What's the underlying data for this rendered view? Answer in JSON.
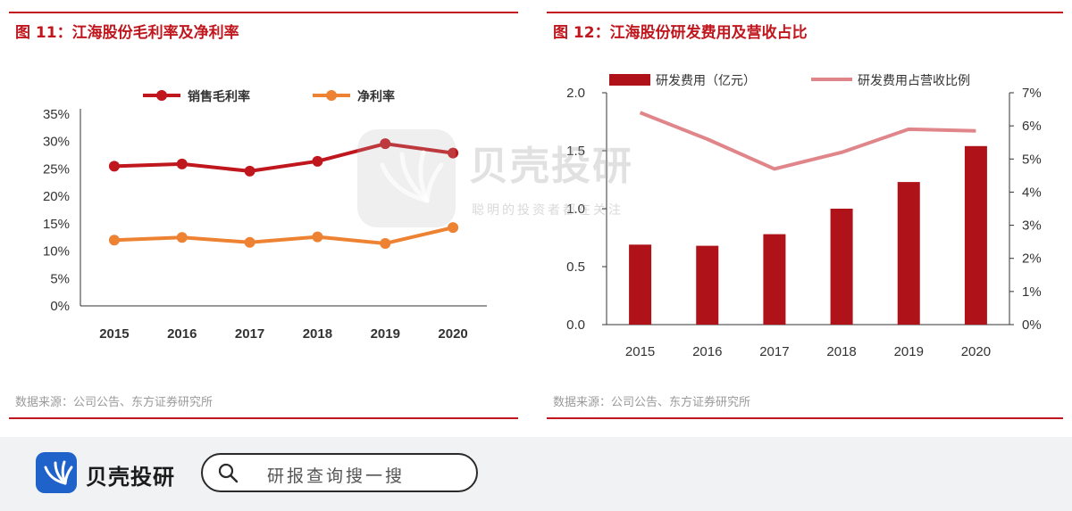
{
  "left_panel": {
    "title": "图 11：江海股份毛利率及净利率",
    "source": "数据来源：公司公告、东方证券研究所"
  },
  "right_panel": {
    "title": "图 12：江海股份研发费用及营收占比",
    "source": "数据来源：公司公告、东方证券研究所"
  },
  "watermark": {
    "brand": "贝壳投研",
    "slogan": "聪明的投资者都在关注"
  },
  "footer": {
    "brand": "贝壳投研",
    "search_placeholder": "研报查询搜一搜",
    "logo_color": "#1f62c9"
  },
  "chart_data": [
    {
      "type": "line",
      "x": [
        "2015",
        "2016",
        "2017",
        "2018",
        "2019",
        "2020"
      ],
      "y_ticks": [
        "0%",
        "5%",
        "10%",
        "15%",
        "20%",
        "25%",
        "30%",
        "35%"
      ],
      "ylim": [
        0,
        35
      ],
      "legend_position": "top",
      "series": [
        {
          "name": "销售毛利率",
          "values": [
            25.5,
            25.9,
            24.6,
            26.4,
            29.6,
            27.9
          ],
          "color": "#c0161d"
        },
        {
          "name": "净利率",
          "values": [
            12.0,
            12.5,
            11.6,
            12.6,
            11.4,
            14.3
          ],
          "color": "#ee8233"
        }
      ]
    },
    {
      "type": "bar",
      "x": [
        "2015",
        "2016",
        "2017",
        "2018",
        "2019",
        "2020"
      ],
      "y_ticks_left": [
        "0.0",
        "0.5",
        "1.0",
        "1.5",
        "2.0"
      ],
      "y_ticks_right": [
        "0%",
        "1%",
        "2%",
        "3%",
        "4%",
        "5%",
        "6%",
        "7%"
      ],
      "ylim_left": [
        0,
        2.0
      ],
      "ylim_right": [
        0,
        7
      ],
      "legend_position": "top",
      "series": [
        {
          "name": "研发费用（亿元）",
          "type": "bar",
          "axis": "left",
          "values": [
            0.69,
            0.68,
            0.78,
            1.0,
            1.23,
            1.54
          ],
          "color": "#b0121a"
        },
        {
          "name": "研发费用占营收比例",
          "type": "line",
          "axis": "right",
          "values": [
            6.4,
            5.6,
            4.7,
            5.2,
            5.9,
            5.85
          ],
          "color": "#e0868a"
        }
      ]
    }
  ]
}
